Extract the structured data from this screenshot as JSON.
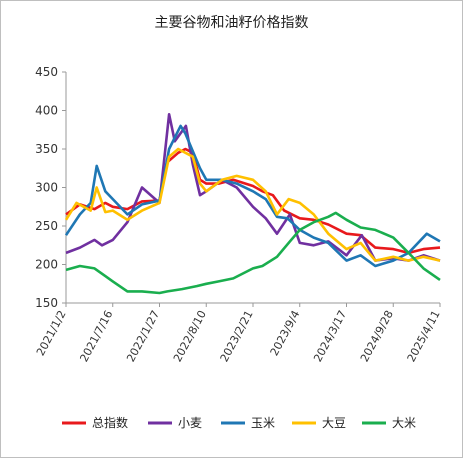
{
  "chart_data": {
    "type": "line",
    "title": "主要谷物和油籽价格指数",
    "xlabel": "",
    "ylabel": "",
    "ylim": [
      150,
      450
    ],
    "yticks": [
      "150",
      "200",
      "250",
      "300",
      "350",
      "400",
      "450"
    ],
    "x_tick_labels": [
      "2021/1/2",
      "2021/7/16",
      "2022/1/27",
      "2022/8/10",
      "2023/2/21",
      "2023/9/4",
      "2024/3/17",
      "2024/9/28",
      "2025/4/11"
    ],
    "x_range": [
      "2021/1/2",
      "2025/4/11"
    ],
    "grid": false,
    "legend_position": "bottom",
    "series": [
      {
        "name": "总指数",
        "color": "#e8191c",
        "points": [
          [
            "2021/1/2",
            265
          ],
          [
            "2021/3/1",
            278
          ],
          [
            "2021/5/1",
            272
          ],
          [
            "2021/6/15",
            280
          ],
          [
            "2021/7/16",
            275
          ],
          [
            "2021/9/15",
            272
          ],
          [
            "2021/11/15",
            282
          ],
          [
            "2022/1/27",
            283
          ],
          [
            "2022/3/1",
            333
          ],
          [
            "2022/4/15",
            345
          ],
          [
            "2022/5/15",
            350
          ],
          [
            "2022/6/15",
            345
          ],
          [
            "2022/7/15",
            310
          ],
          [
            "2022/8/10",
            305
          ],
          [
            "2022/10/1",
            305
          ],
          [
            "2022/12/1",
            310
          ],
          [
            "2023/2/21",
            302
          ],
          [
            "2023/4/1",
            295
          ],
          [
            "2023/5/15",
            290
          ],
          [
            "2023/7/1",
            270
          ],
          [
            "2023/9/4",
            260
          ],
          [
            "2023/11/1",
            258
          ],
          [
            "2024/1/1",
            252
          ],
          [
            "2024/3/17",
            240
          ],
          [
            "2024/5/15",
            238
          ],
          [
            "2024/7/15",
            222
          ],
          [
            "2024/9/28",
            220
          ],
          [
            "2024/12/1",
            215
          ],
          [
            "2025/2/1",
            220
          ],
          [
            "2025/4/11",
            222
          ]
        ]
      },
      {
        "name": "小麦",
        "color": "#7030a0",
        "points": [
          [
            "2021/1/2",
            215
          ],
          [
            "2021/3/1",
            222
          ],
          [
            "2021/5/1",
            232
          ],
          [
            "2021/6/1",
            225
          ],
          [
            "2021/7/16",
            232
          ],
          [
            "2021/9/15",
            255
          ],
          [
            "2021/11/15",
            300
          ],
          [
            "2022/1/27",
            280
          ],
          [
            "2022/3/8",
            395
          ],
          [
            "2022/4/1",
            360
          ],
          [
            "2022/5/17",
            380
          ],
          [
            "2022/6/15",
            330
          ],
          [
            "2022/7/15",
            290
          ],
          [
            "2022/8/10",
            295
          ],
          [
            "2022/10/15",
            310
          ],
          [
            "2022/12/15",
            300
          ],
          [
            "2023/2/21",
            275
          ],
          [
            "2023/4/15",
            260
          ],
          [
            "2023/6/1",
            240
          ],
          [
            "2023/7/25",
            265
          ],
          [
            "2023/9/4",
            228
          ],
          [
            "2023/11/1",
            225
          ],
          [
            "2024/1/1",
            230
          ],
          [
            "2024/3/17",
            212
          ],
          [
            "2024/5/20",
            238
          ],
          [
            "2024/7/15",
            205
          ],
          [
            "2024/9/28",
            208
          ],
          [
            "2024/12/1",
            205
          ],
          [
            "2025/2/1",
            212
          ],
          [
            "2025/4/11",
            205
          ]
        ]
      },
      {
        "name": "玉米",
        "color": "#1f77b4",
        "points": [
          [
            "2021/1/2",
            238
          ],
          [
            "2021/3/1",
            265
          ],
          [
            "2021/4/15",
            280
          ],
          [
            "2021/5/10",
            328
          ],
          [
            "2021/6/15",
            295
          ],
          [
            "2021/7/16",
            285
          ],
          [
            "2021/9/15",
            265
          ],
          [
            "2021/11/15",
            278
          ],
          [
            "2022/1/27",
            283
          ],
          [
            "2022/3/8",
            350
          ],
          [
            "2022/4/25",
            380
          ],
          [
            "2022/5/15",
            370
          ],
          [
            "2022/7/15",
            325
          ],
          [
            "2022/8/10",
            310
          ],
          [
            "2022/10/15",
            310
          ],
          [
            "2022/12/15",
            305
          ],
          [
            "2023/2/21",
            295
          ],
          [
            "2023/4/15",
            285
          ],
          [
            "2023/6/1",
            262
          ],
          [
            "2023/7/15",
            260
          ],
          [
            "2023/9/4",
            245
          ],
          [
            "2023/11/1",
            235
          ],
          [
            "2024/1/1",
            228
          ],
          [
            "2024/3/17",
            205
          ],
          [
            "2024/5/15",
            212
          ],
          [
            "2024/7/15",
            198
          ],
          [
            "2024/9/28",
            205
          ],
          [
            "2024/12/1",
            215
          ],
          [
            "2025/2/15",
            240
          ],
          [
            "2025/4/11",
            230
          ]
        ]
      },
      {
        "name": "大豆",
        "color": "#ffc000",
        "points": [
          [
            "2021/1/2",
            258
          ],
          [
            "2021/2/15",
            280
          ],
          [
            "2021/4/15",
            270
          ],
          [
            "2021/5/10",
            300
          ],
          [
            "2021/6/15",
            268
          ],
          [
            "2021/7/16",
            270
          ],
          [
            "2021/9/15",
            258
          ],
          [
            "2021/11/15",
            270
          ],
          [
            "2022/1/27",
            280
          ],
          [
            "2022/3/8",
            340
          ],
          [
            "2022/4/15",
            350
          ],
          [
            "2022/6/15",
            340
          ],
          [
            "2022/7/15",
            305
          ],
          [
            "2022/8/10",
            295
          ],
          [
            "2022/10/15",
            310
          ],
          [
            "2022/12/15",
            315
          ],
          [
            "2023/2/21",
            310
          ],
          [
            "2023/4/15",
            295
          ],
          [
            "2023/6/1",
            265
          ],
          [
            "2023/7/20",
            285
          ],
          [
            "2023/9/4",
            280
          ],
          [
            "2023/11/1",
            265
          ],
          [
            "2024/1/1",
            240
          ],
          [
            "2024/3/17",
            220
          ],
          [
            "2024/5/15",
            228
          ],
          [
            "2024/7/15",
            205
          ],
          [
            "2024/9/28",
            210
          ],
          [
            "2024/12/1",
            205
          ],
          [
            "2025/2/1",
            210
          ],
          [
            "2025/4/11",
            205
          ]
        ]
      },
      {
        "name": "大米",
        "color": "#1aae4e",
        "points": [
          [
            "2021/1/2",
            193
          ],
          [
            "2021/3/1",
            198
          ],
          [
            "2021/5/1",
            195
          ],
          [
            "2021/6/15",
            185
          ],
          [
            "2021/7/16",
            178
          ],
          [
            "2021/9/15",
            165
          ],
          [
            "2021/11/15",
            165
          ],
          [
            "2022/1/27",
            163
          ],
          [
            "2022/3/1",
            165
          ],
          [
            "2022/5/1",
            168
          ],
          [
            "2022/7/1",
            172
          ],
          [
            "2022/8/10",
            175
          ],
          [
            "2022/10/1",
            178
          ],
          [
            "2022/12/1",
            182
          ],
          [
            "2023/2/21",
            195
          ],
          [
            "2023/4/1",
            198
          ],
          [
            "2023/6/1",
            210
          ],
          [
            "2023/7/25",
            230
          ],
          [
            "2023/9/4",
            245
          ],
          [
            "2023/11/1",
            255
          ],
          [
            "2024/1/1",
            262
          ],
          [
            "2024/2/1",
            267
          ],
          [
            "2024/3/17",
            258
          ],
          [
            "2024/5/15",
            248
          ],
          [
            "2024/7/15",
            245
          ],
          [
            "2024/9/28",
            235
          ],
          [
            "2024/12/1",
            215
          ],
          [
            "2025/2/1",
            195
          ],
          [
            "2025/4/11",
            180
          ]
        ]
      }
    ]
  }
}
